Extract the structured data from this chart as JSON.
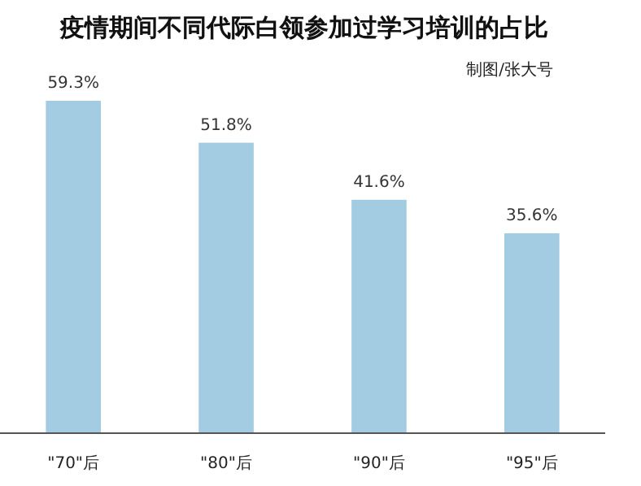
{
  "chart_data": {
    "type": "bar",
    "title": "疫情期间不同代际白领参加过学习培训的占比",
    "annotations": [
      "制图/张大号"
    ],
    "categories": [
      "\"70\"后",
      "\"80\"后",
      "\"90\"后",
      "\"95\"后"
    ],
    "values": [
      59.3,
      51.8,
      41.6,
      35.6
    ],
    "color": "#a3cce3",
    "value_labels": [
      "59.3%",
      "51.8%",
      "41.6%",
      "35.6%"
    ]
  }
}
